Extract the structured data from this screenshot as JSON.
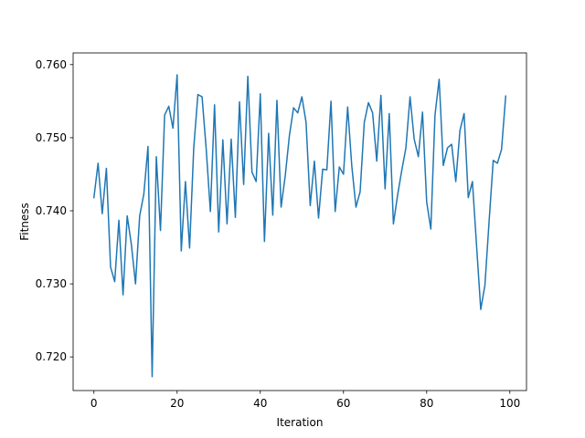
{
  "chart_data": {
    "type": "line",
    "title": "",
    "xlabel": "Iteration",
    "ylabel": "Fitness",
    "xlim": [
      -5,
      104
    ],
    "ylim": [
      0.7154,
      0.7616
    ],
    "xticks": [
      0,
      20,
      40,
      60,
      80,
      100
    ],
    "yticks": [
      0.72,
      0.73,
      0.74,
      0.75,
      0.76
    ],
    "xtick_labels": [
      "0",
      "20",
      "40",
      "60",
      "80",
      "100"
    ],
    "ytick_labels": [
      "0.720",
      "0.730",
      "0.740",
      "0.750",
      "0.760"
    ],
    "grid": false,
    "legend": "none",
    "series": [
      {
        "color": "#1f77b4",
        "x": [
          0,
          1,
          2,
          3,
          4,
          5,
          6,
          7,
          8,
          9,
          10,
          11,
          12,
          13,
          14,
          15,
          16,
          17,
          18,
          19,
          20,
          21,
          22,
          23,
          24,
          25,
          26,
          27,
          28,
          29,
          30,
          31,
          32,
          33,
          34,
          35,
          36,
          37,
          38,
          39,
          40,
          41,
          42,
          43,
          44,
          45,
          46,
          47,
          48,
          49,
          50,
          51,
          52,
          53,
          54,
          55,
          56,
          57,
          58,
          59,
          60,
          61,
          62,
          63,
          64,
          65,
          66,
          67,
          68,
          69,
          70,
          71,
          72,
          73,
          74,
          75,
          76,
          77,
          78,
          79,
          80,
          81,
          82,
          83,
          84,
          85,
          86,
          87,
          88,
          89,
          90,
          91,
          92,
          93,
          94,
          95,
          96,
          97,
          98,
          99
        ],
        "y": [
          0.7418,
          0.7465,
          0.7396,
          0.7458,
          0.7323,
          0.7303,
          0.7387,
          0.7285,
          0.7393,
          0.7354,
          0.73,
          0.7393,
          0.7423,
          0.7488,
          0.7173,
          0.7474,
          0.7373,
          0.7531,
          0.7543,
          0.7513,
          0.7586,
          0.7345,
          0.744,
          0.7349,
          0.7486,
          0.7559,
          0.7556,
          0.7484,
          0.7399,
          0.7545,
          0.7371,
          0.7497,
          0.7382,
          0.7498,
          0.7391,
          0.7549,
          0.7436,
          0.7584,
          0.7453,
          0.744,
          0.756,
          0.7358,
          0.7506,
          0.7394,
          0.7551,
          0.7405,
          0.7448,
          0.7503,
          0.7541,
          0.7534,
          0.7556,
          0.7521,
          0.7407,
          0.7468,
          0.739,
          0.7457,
          0.7456,
          0.755,
          0.7399,
          0.746,
          0.745,
          0.7542,
          0.7461,
          0.7405,
          0.7426,
          0.7521,
          0.7548,
          0.7534,
          0.7468,
          0.7558,
          0.743,
          0.7533,
          0.7382,
          0.7421,
          0.7455,
          0.7486,
          0.7556,
          0.7498,
          0.7474,
          0.7535,
          0.7412,
          0.7375,
          0.7531,
          0.758,
          0.7462,
          0.7486,
          0.7491,
          0.744,
          0.751,
          0.7533,
          0.7418,
          0.744,
          0.7352,
          0.7265,
          0.7298,
          0.7385,
          0.7469,
          0.7465,
          0.7484,
          0.7557
        ]
      }
    ]
  }
}
